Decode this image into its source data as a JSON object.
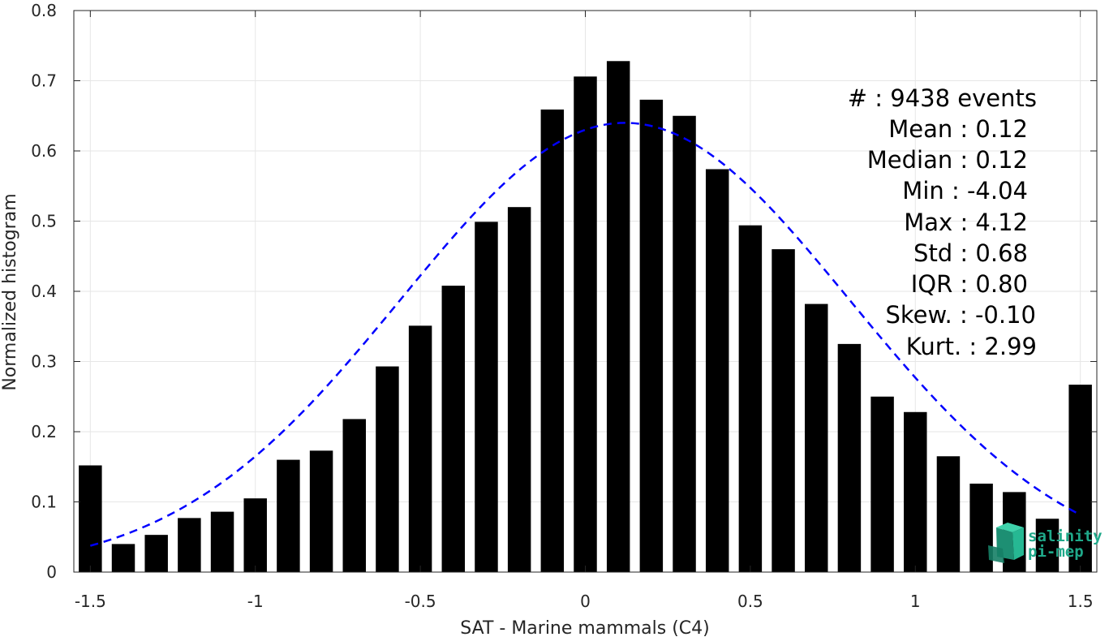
{
  "chart_data": {
    "type": "bar",
    "xlabel": "SAT - Marine mammals (C4)",
    "ylabel": "Normalized histogram",
    "xlim": [
      -1.55,
      1.55
    ],
    "ylim": [
      0,
      0.8
    ],
    "x_ticks": [
      -1.5,
      -1,
      -0.5,
      0,
      0.5,
      1,
      1.5
    ],
    "x_tick_labels": [
      "-1.5",
      "-1",
      "-0.5",
      "0",
      "0.5",
      "1",
      "1.5"
    ],
    "y_ticks": [
      0,
      0.1,
      0.2,
      0.3,
      0.4,
      0.5,
      0.6,
      0.7,
      0.8
    ],
    "y_tick_labels": [
      "0",
      "0.1",
      "0.2",
      "0.3",
      "0.4",
      "0.5",
      "0.6",
      "0.7",
      "0.8"
    ],
    "grid": true,
    "bar_color": "#000000",
    "bars": {
      "x": [
        -1.5,
        -1.4,
        -1.3,
        -1.2,
        -1.1,
        -1.0,
        -0.9,
        -0.8,
        -0.7,
        -0.6,
        -0.5,
        -0.4,
        -0.3,
        -0.2,
        -0.1,
        0.0,
        0.1,
        0.2,
        0.3,
        0.4,
        0.5,
        0.6,
        0.7,
        0.8,
        0.9,
        1.0,
        1.1,
        1.2,
        1.3,
        1.4,
        1.5
      ],
      "values": [
        0.152,
        0.04,
        0.053,
        0.077,
        0.086,
        0.105,
        0.16,
        0.173,
        0.218,
        0.293,
        0.351,
        0.408,
        0.499,
        0.52,
        0.659,
        0.706,
        0.728,
        0.673,
        0.65,
        0.574,
        0.494,
        0.46,
        0.382,
        0.325,
        0.25,
        0.228,
        0.165,
        0.126,
        0.114,
        0.076,
        0.267
      ]
    },
    "fit_curve": {
      "type": "gaussian",
      "mean": 0.12,
      "std": 0.68,
      "peak": 0.64,
      "x_range": [
        -1.5,
        1.5
      ],
      "color": "#0000ff",
      "style": "dashed"
    }
  },
  "stats": {
    "count": "#  : 9438 events",
    "mean": "Mean : 0.12",
    "median": "Median : 0.12",
    "min": "Min : -4.04",
    "max": "Max : 4.12",
    "std": "Std : 0.68",
    "iqr": "IQR : 0.80",
    "skew": "Skew. : -0.10",
    "kurt": "Kurt. : 2.99"
  },
  "logo": {
    "line1": "salinity",
    "line2": "pi-mep",
    "color": "#1fa98a"
  }
}
